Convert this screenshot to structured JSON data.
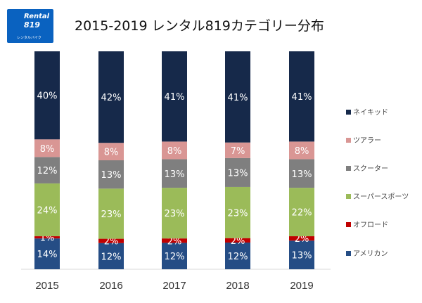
{
  "header": {
    "logo_text": "Rental 819 レンタルバイク",
    "title": "2015-2019 レンタル819カテゴリー分布"
  },
  "chart_data": {
    "type": "bar",
    "stacked": true,
    "title": "2015-2019 レンタル819カテゴリー分布",
    "categories": [
      "2015",
      "2016",
      "2017",
      "2018",
      "2019"
    ],
    "ylim": [
      0,
      100
    ],
    "legend": "right",
    "grid": false,
    "series": [
      {
        "name": "アメリカン",
        "color": "#254d85",
        "values": [
          14,
          12,
          12,
          12,
          13
        ]
      },
      {
        "name": "オフロード",
        "color": "#c00000",
        "values": [
          1,
          2,
          2,
          2,
          2
        ]
      },
      {
        "name": "スーパースポーツ",
        "color": "#9bbb59",
        "values": [
          24,
          23,
          23,
          23,
          22
        ]
      },
      {
        "name": "スクーター",
        "color": "#7f7f7f",
        "values": [
          12,
          13,
          13,
          13,
          13
        ]
      },
      {
        "name": "ツアラー",
        "color": "#d99694",
        "values": [
          8,
          8,
          8,
          7,
          8
        ]
      },
      {
        "name": "ネイキッド",
        "color": "#16294a",
        "values": [
          40,
          42,
          41,
          41,
          41
        ]
      }
    ]
  }
}
